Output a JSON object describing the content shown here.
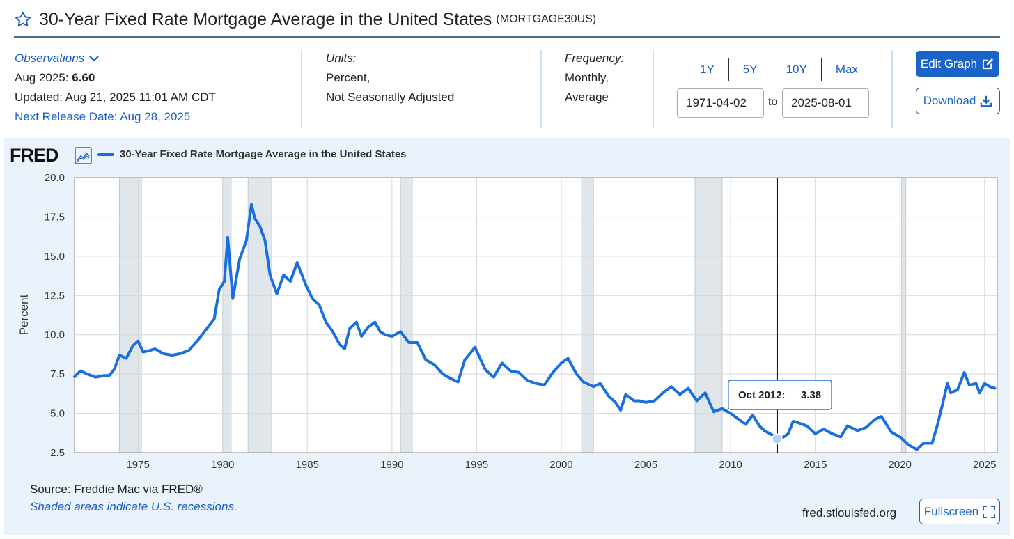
{
  "header": {
    "title": "30-Year Fixed Rate Mortgage Average in the United States",
    "series_id": "(MORTGAGE30US)"
  },
  "observations": {
    "label": "Observations",
    "latest_prefix": "Aug 2025:",
    "latest_value": "6.60",
    "updated": "Updated: Aug 21, 2025 11:01 AM CDT",
    "next_release": "Next Release Date: Aug 28, 2025"
  },
  "units": {
    "label": "Units:",
    "line1": "Percent,",
    "line2": "Not Seasonally Adjusted"
  },
  "frequency": {
    "label": "Frequency:",
    "line1": "Monthly,",
    "line2": "Average"
  },
  "range": {
    "links": [
      "1Y",
      "5Y",
      "10Y",
      "Max"
    ],
    "start": "1971-04-02",
    "to_label": "to",
    "end": "2025-08-01"
  },
  "buttons": {
    "edit_graph": "Edit Graph",
    "download": "Download",
    "fullscreen": "Fullscreen"
  },
  "colors": {
    "series": "#1a6fe0",
    "accent": "#1a64c8",
    "panel_bg": "#eaf3fb",
    "recession": "#e1e6eb"
  },
  "legend_label": "30-Year Fixed Rate Mortgage Average in the United States",
  "logo_text": "FRED",
  "tooltip": {
    "label": "Oct 2012:",
    "value": "3.38",
    "x": 2012.75,
    "y": 3.38
  },
  "footer": {
    "source": "Source: Freddie Mac via FRED®",
    "note": "Shaded areas indicate U.S. recessions.",
    "site": "fred.stlouisfed.org"
  },
  "chart_data": {
    "type": "line",
    "title": "30-Year Fixed Rate Mortgage Average in the United States",
    "ylabel": "Percent",
    "xlabel": "",
    "xlim": [
      1971.25,
      2025.75
    ],
    "ylim": [
      2.5,
      20.0
    ],
    "x_ticks": [
      1975,
      1980,
      1985,
      1990,
      1995,
      2000,
      2005,
      2010,
      2015,
      2020,
      2025
    ],
    "y_ticks": [
      2.5,
      5.0,
      7.5,
      10.0,
      12.5,
      15.0,
      17.5,
      20.0
    ],
    "y_tick_labels": [
      "2.5",
      "5.0",
      "7.5",
      "10.0",
      "12.5",
      "15.0",
      "17.5",
      "20.0"
    ],
    "recessions": [
      [
        1973.9,
        1975.2
      ],
      [
        1980.0,
        1980.5
      ],
      [
        1981.5,
        1982.9
      ],
      [
        1990.5,
        1991.2
      ],
      [
        2001.2,
        2001.9
      ],
      [
        2007.9,
        2009.5
      ],
      [
        2020.1,
        2020.35
      ]
    ],
    "series": [
      {
        "name": "30-Year Fixed Rate Mortgage Average in the United States",
        "points": [
          [
            1971.25,
            7.33
          ],
          [
            1971.6,
            7.7
          ],
          [
            1972.0,
            7.5
          ],
          [
            1972.5,
            7.3
          ],
          [
            1973.0,
            7.4
          ],
          [
            1973.3,
            7.4
          ],
          [
            1973.6,
            7.8
          ],
          [
            1973.9,
            8.7
          ],
          [
            1974.3,
            8.5
          ],
          [
            1974.7,
            9.3
          ],
          [
            1975.0,
            9.6
          ],
          [
            1975.3,
            8.9
          ],
          [
            1975.7,
            9.0
          ],
          [
            1976.0,
            9.1
          ],
          [
            1976.5,
            8.8
          ],
          [
            1977.0,
            8.7
          ],
          [
            1977.5,
            8.8
          ],
          [
            1978.0,
            9.0
          ],
          [
            1978.5,
            9.6
          ],
          [
            1979.0,
            10.3
          ],
          [
            1979.5,
            11.0
          ],
          [
            1979.8,
            12.9
          ],
          [
            1980.1,
            13.4
          ],
          [
            1980.3,
            16.2
          ],
          [
            1980.6,
            12.3
          ],
          [
            1981.0,
            14.8
          ],
          [
            1981.4,
            16.0
          ],
          [
            1981.7,
            18.3
          ],
          [
            1981.9,
            17.4
          ],
          [
            1982.2,
            16.9
          ],
          [
            1982.5,
            16.0
          ],
          [
            1982.8,
            13.8
          ],
          [
            1983.2,
            12.6
          ],
          [
            1983.6,
            13.8
          ],
          [
            1984.0,
            13.4
          ],
          [
            1984.4,
            14.6
          ],
          [
            1984.9,
            13.2
          ],
          [
            1985.3,
            12.3
          ],
          [
            1985.7,
            11.9
          ],
          [
            1986.1,
            10.8
          ],
          [
            1986.5,
            10.2
          ],
          [
            1986.9,
            9.4
          ],
          [
            1987.2,
            9.1
          ],
          [
            1987.5,
            10.4
          ],
          [
            1987.9,
            10.8
          ],
          [
            1988.2,
            9.9
          ],
          [
            1988.6,
            10.5
          ],
          [
            1989.0,
            10.8
          ],
          [
            1989.3,
            10.2
          ],
          [
            1989.6,
            10.0
          ],
          [
            1990.0,
            9.9
          ],
          [
            1990.5,
            10.2
          ],
          [
            1991.0,
            9.5
          ],
          [
            1991.5,
            9.5
          ],
          [
            1992.0,
            8.4
          ],
          [
            1992.5,
            8.1
          ],
          [
            1993.0,
            7.5
          ],
          [
            1993.5,
            7.2
          ],
          [
            1993.9,
            7.0
          ],
          [
            1994.3,
            8.4
          ],
          [
            1994.9,
            9.2
          ],
          [
            1995.5,
            7.8
          ],
          [
            1996.0,
            7.3
          ],
          [
            1996.5,
            8.2
          ],
          [
            1997.0,
            7.7
          ],
          [
            1997.5,
            7.6
          ],
          [
            1998.0,
            7.1
          ],
          [
            1998.5,
            6.9
          ],
          [
            1999.0,
            6.8
          ],
          [
            1999.5,
            7.6
          ],
          [
            2000.0,
            8.2
          ],
          [
            2000.4,
            8.5
          ],
          [
            2000.9,
            7.5
          ],
          [
            2001.3,
            7.0
          ],
          [
            2001.9,
            6.7
          ],
          [
            2002.3,
            6.9
          ],
          [
            2002.8,
            6.1
          ],
          [
            2003.2,
            5.7
          ],
          [
            2003.5,
            5.2
          ],
          [
            2003.8,
            6.2
          ],
          [
            2004.3,
            5.8
          ],
          [
            2004.6,
            5.8
          ],
          [
            2005.0,
            5.7
          ],
          [
            2005.5,
            5.8
          ],
          [
            2006.0,
            6.3
          ],
          [
            2006.5,
            6.7
          ],
          [
            2007.0,
            6.2
          ],
          [
            2007.5,
            6.6
          ],
          [
            2008.0,
            5.8
          ],
          [
            2008.5,
            6.3
          ],
          [
            2009.0,
            5.1
          ],
          [
            2009.5,
            5.3
          ],
          [
            2010.0,
            5.0
          ],
          [
            2010.5,
            4.6
          ],
          [
            2010.9,
            4.3
          ],
          [
            2011.3,
            4.9
          ],
          [
            2011.7,
            4.2
          ],
          [
            2012.0,
            3.9
          ],
          [
            2012.5,
            3.6
          ],
          [
            2012.75,
            3.38
          ],
          [
            2013.0,
            3.4
          ],
          [
            2013.4,
            3.7
          ],
          [
            2013.7,
            4.5
          ],
          [
            2014.0,
            4.4
          ],
          [
            2014.5,
            4.2
          ],
          [
            2015.0,
            3.7
          ],
          [
            2015.5,
            4.0
          ],
          [
            2016.0,
            3.7
          ],
          [
            2016.5,
            3.5
          ],
          [
            2016.9,
            4.2
          ],
          [
            2017.5,
            3.9
          ],
          [
            2018.0,
            4.1
          ],
          [
            2018.5,
            4.6
          ],
          [
            2018.9,
            4.8
          ],
          [
            2019.5,
            3.8
          ],
          [
            2020.0,
            3.5
          ],
          [
            2020.5,
            3.0
          ],
          [
            2021.0,
            2.7
          ],
          [
            2021.4,
            3.1
          ],
          [
            2021.9,
            3.1
          ],
          [
            2022.2,
            4.2
          ],
          [
            2022.5,
            5.5
          ],
          [
            2022.8,
            6.9
          ],
          [
            2023.0,
            6.3
          ],
          [
            2023.4,
            6.5
          ],
          [
            2023.8,
            7.6
          ],
          [
            2024.1,
            6.8
          ],
          [
            2024.5,
            6.9
          ],
          [
            2024.7,
            6.3
          ],
          [
            2025.0,
            6.9
          ],
          [
            2025.3,
            6.7
          ],
          [
            2025.6,
            6.6
          ]
        ]
      }
    ]
  }
}
